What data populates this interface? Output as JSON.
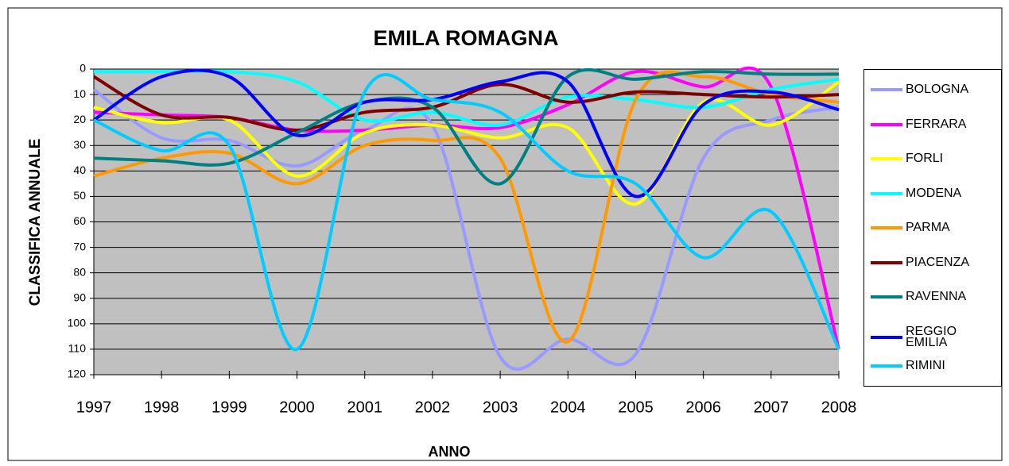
{
  "chart_data": {
    "type": "line",
    "title": "EMILA ROMAGNA",
    "x_label": "ANNO",
    "y_label": "CLASSIFICA ANNUALE",
    "categories": [
      "1997",
      "1998",
      "1999",
      "2000",
      "2001",
      "2002",
      "2003",
      "2004",
      "2005",
      "2006",
      "2007",
      "2008"
    ],
    "ylim": [
      0,
      120
    ],
    "y_inverted": true,
    "yticks": [
      0,
      10,
      20,
      30,
      40,
      50,
      60,
      70,
      80,
      90,
      100,
      110,
      120
    ],
    "grid": true,
    "smooth": true,
    "legend": "right",
    "series": [
      {
        "name": "BOLOGNA",
        "color": "#9999ff",
        "values": [
          8,
          27,
          28,
          38,
          24,
          22,
          113,
          106,
          112,
          35,
          20,
          15
        ]
      },
      {
        "name": "FERRARA",
        "color": "#ff00ff",
        "values": [
          17,
          18,
          19,
          24,
          24,
          22,
          23,
          14,
          1,
          7,
          7,
          110
        ]
      },
      {
        "name": "FORLI",
        "color": "#ffff00",
        "values": [
          15,
          21,
          20,
          42,
          25,
          22,
          27,
          23,
          53,
          13,
          22,
          5
        ]
      },
      {
        "name": "MODENA",
        "color": "#00ffff",
        "values": [
          1,
          1,
          1,
          5,
          20,
          17,
          22,
          11,
          12,
          15,
          8,
          4
        ]
      },
      {
        "name": "PARMA",
        "color": "#ff9900",
        "values": [
          42,
          35,
          33,
          45,
          30,
          28,
          35,
          107,
          12,
          3,
          10,
          13
        ]
      },
      {
        "name": "PIACENZA",
        "color": "#800000",
        "values": [
          3,
          18,
          19,
          24,
          17,
          15,
          6,
          13,
          9,
          10,
          11,
          10
        ]
      },
      {
        "name": "RAVENNA",
        "color": "#008080",
        "values": [
          35,
          36,
          37,
          25,
          13,
          15,
          45,
          3,
          4,
          1,
          2,
          2
        ]
      },
      {
        "name": "REGGIO EMILIA",
        "color": "#0000ff",
        "values": [
          20,
          3,
          3,
          26,
          13,
          12,
          5,
          5,
          50,
          14,
          9,
          16
        ]
      },
      {
        "name": "RIMINI",
        "color": "#00ccff",
        "values": [
          20,
          32,
          30,
          110,
          9,
          12,
          17,
          40,
          45,
          74,
          56,
          110
        ]
      }
    ]
  }
}
